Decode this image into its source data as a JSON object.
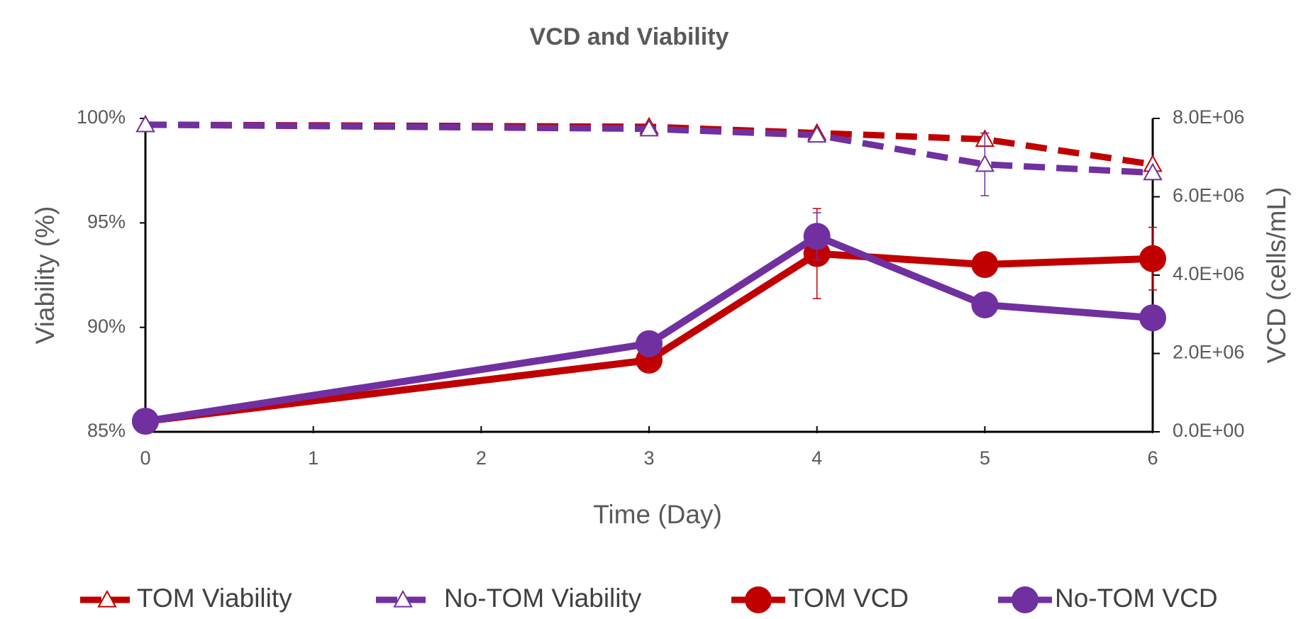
{
  "chart_data": {
    "type": "line",
    "title": "VCD and Viability",
    "x_label": "Time (Day)",
    "y_label": "Viability (%)",
    "y2_label": "VCD (cells/mL)",
    "x": [
      0,
      3,
      4,
      5,
      6
    ],
    "xlim": [
      0,
      6
    ],
    "xticks": [
      0,
      1,
      2,
      3,
      4,
      5,
      6
    ],
    "ylim": [
      85,
      100
    ],
    "yticks": [
      {
        "value": 85,
        "label": "85%"
      },
      {
        "value": 90,
        "label": "90%"
      },
      {
        "value": 95,
        "label": "95%"
      },
      {
        "value": 100,
        "label": "100%"
      }
    ],
    "y2lim": [
      0,
      8000000
    ],
    "y2ticks": [
      {
        "value": 0,
        "label": "0.0E+00"
      },
      {
        "value": 2000000,
        "label": "2.0E+06"
      },
      {
        "value": 4000000,
        "label": "4.0E+06"
      },
      {
        "value": 6000000,
        "label": "6.0E+06"
      },
      {
        "value": 8000000,
        "label": "8.0E+06"
      }
    ],
    "legend_position": "bottom",
    "series": [
      {
        "name": "TOM Viability",
        "color": "#c00000",
        "marker": "triangle",
        "dashed": true,
        "values": [
          99.7,
          99.6,
          99.3,
          99.0,
          97.8
        ],
        "errors": [
          null,
          null,
          null,
          0.3,
          null
        ]
      },
      {
        "name": "No-TOM Viability",
        "color": "#7030a0",
        "marker": "triangle",
        "dashed": true,
        "values": [
          99.7,
          99.5,
          99.2,
          97.8,
          97.4
        ],
        "errors": [
          null,
          null,
          null,
          1.5,
          null
        ]
      },
      {
        "name": "TOM VCD",
        "color": "#c00000",
        "marker": "circle",
        "dashed": false,
        "axis": "y2",
        "values": [
          270000,
          1830000,
          4550000,
          4270000,
          4420000
        ],
        "errors": [
          null,
          null,
          1150000,
          null,
          800000
        ]
      },
      {
        "name": "No-TOM VCD",
        "color": "#7030a0",
        "marker": "circle",
        "dashed": false,
        "axis": "y2",
        "values": [
          270000,
          2250000,
          4990000,
          3240000,
          2910000
        ],
        "errors": [
          null,
          null,
          600000,
          null,
          null
        ]
      }
    ]
  }
}
